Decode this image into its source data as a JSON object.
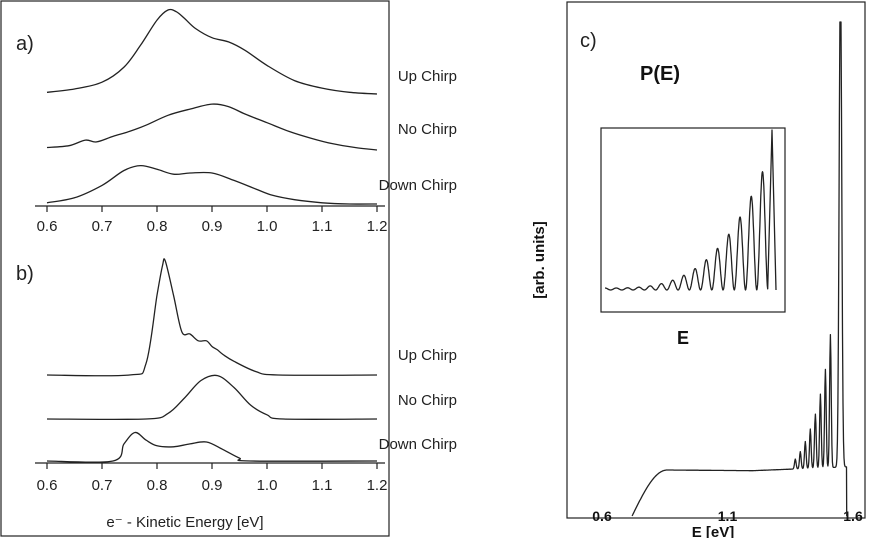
{
  "chart_data": [
    {
      "id": "a",
      "type": "line",
      "panel_label": "a)",
      "xlim": [
        0.6,
        1.2
      ],
      "x_ticks": [
        "0.6",
        "0.7",
        "0.8",
        "0.9",
        "1.0",
        "1.1",
        "1.2"
      ],
      "series": [
        {
          "name": "Up Chirp",
          "x": [
            0.6,
            0.65,
            0.7,
            0.74,
            0.77,
            0.8,
            0.82,
            0.835,
            0.85,
            0.87,
            0.9,
            0.93,
            0.96,
            1.0,
            1.05,
            1.1,
            1.15,
            1.2
          ],
          "y": [
            0.02,
            0.06,
            0.14,
            0.32,
            0.58,
            0.88,
            1.0,
            0.98,
            0.9,
            0.78,
            0.67,
            0.62,
            0.52,
            0.34,
            0.16,
            0.07,
            0.02,
            0.0
          ]
        },
        {
          "name": "No Chirp",
          "x": [
            0.6,
            0.64,
            0.67,
            0.69,
            0.72,
            0.75,
            0.78,
            0.82,
            0.86,
            0.9,
            0.93,
            0.96,
            1.0,
            1.04,
            1.08,
            1.12,
            1.16,
            1.2
          ],
          "y": [
            0.04,
            0.07,
            0.16,
            0.13,
            0.22,
            0.3,
            0.4,
            0.56,
            0.66,
            0.74,
            0.7,
            0.58,
            0.44,
            0.3,
            0.19,
            0.1,
            0.04,
            0.0
          ]
        },
        {
          "name": "Down Chirp",
          "x": [
            0.6,
            0.65,
            0.7,
            0.74,
            0.77,
            0.8,
            0.83,
            0.86,
            0.9,
            0.94,
            0.98,
            1.01,
            1.05,
            1.1,
            1.15,
            1.2
          ],
          "y": [
            0.02,
            0.1,
            0.3,
            0.54,
            0.62,
            0.56,
            0.48,
            0.5,
            0.5,
            0.38,
            0.24,
            0.14,
            0.07,
            0.02,
            0.0,
            0.0
          ]
        }
      ]
    },
    {
      "id": "b",
      "type": "line",
      "panel_label": "b)",
      "xlim": [
        0.6,
        1.2
      ],
      "x_ticks": [
        "0.6",
        "0.7",
        "0.8",
        "0.9",
        "1.0",
        "1.1",
        "1.2"
      ],
      "xlabel": "e⁻ - Kinetic Energy [eV]",
      "series": [
        {
          "name": "Up Chirp",
          "x": [
            0.6,
            0.75,
            0.78,
            0.8,
            0.81,
            0.815,
            0.83,
            0.845,
            0.86,
            0.875,
            0.89,
            0.9,
            0.91,
            0.92,
            0.94,
            0.98,
            1.02,
            1.2
          ],
          "y": [
            0.0,
            0.0,
            0.1,
            0.7,
            0.96,
            1.0,
            0.7,
            0.38,
            0.36,
            0.3,
            0.3,
            0.25,
            0.22,
            0.18,
            0.12,
            0.03,
            0.0,
            0.0
          ]
        },
        {
          "name": "No Chirp",
          "x": [
            0.6,
            0.78,
            0.82,
            0.85,
            0.88,
            0.91,
            0.94,
            0.97,
            1.0,
            1.03,
            1.2
          ],
          "y": [
            0.0,
            0.0,
            0.08,
            0.3,
            0.55,
            0.62,
            0.45,
            0.2,
            0.06,
            0.0,
            0.0
          ]
        },
        {
          "name": "Down Chirp",
          "x": [
            0.6,
            0.72,
            0.74,
            0.76,
            0.78,
            0.8,
            0.83,
            0.86,
            0.89,
            0.92,
            0.95,
            0.97,
            1.2
          ],
          "y": [
            0.0,
            0.0,
            0.18,
            0.3,
            0.22,
            0.16,
            0.15,
            0.18,
            0.2,
            0.12,
            0.03,
            0.0,
            0.0
          ]
        }
      ]
    },
    {
      "id": "c",
      "type": "line",
      "panel_label": "c)",
      "title": "P(E)",
      "xlabel": "E [eV]",
      "ylabel": "[arb. units]",
      "xlim": [
        0.6,
        1.6
      ],
      "x_ticks": [
        "0.6",
        "1.1",
        "1.6"
      ],
      "inset_xlabel": "E",
      "peaks": {
        "x": [
          1.37,
          1.39,
          1.41,
          1.43,
          1.45,
          1.47,
          1.49,
          1.51,
          1.55
        ],
        "y": [
          0.02,
          0.035,
          0.055,
          0.08,
          0.11,
          0.15,
          0.2,
          0.27,
          1.0
        ]
      }
    }
  ]
}
